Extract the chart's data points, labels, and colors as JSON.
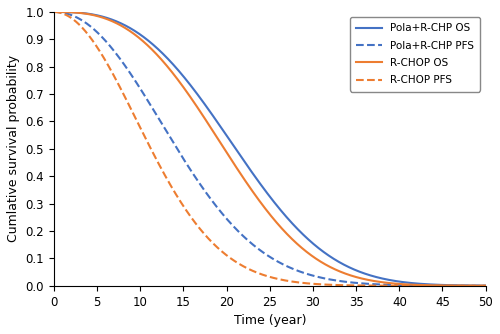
{
  "title": "",
  "xlabel": "Time (year)",
  "ylabel": "Cumlative survival probability",
  "xlim": [
    0,
    50
  ],
  "ylim": [
    0,
    1.0
  ],
  "xticks": [
    0,
    5,
    10,
    15,
    20,
    25,
    30,
    35,
    40,
    45,
    50
  ],
  "yticks": [
    0.0,
    0.1,
    0.2,
    0.3,
    0.4,
    0.5,
    0.6,
    0.7,
    0.8,
    0.9,
    1.0
  ],
  "blue_color": "#4472C4",
  "orange_color": "#ED7D31",
  "legend_labels": [
    "Pola+R-CHP OS",
    "Pola+R-CHP PFS",
    "R-CHOP OS",
    "R-CHOP PFS"
  ],
  "pola_os": {
    "scale": 24.0,
    "shape": 2.8
  },
  "rchop_os": {
    "scale": 22.5,
    "shape": 2.8
  },
  "pola_pfs": {
    "scale": 17.0,
    "shape": 2.1
  },
  "rchop_pfs": {
    "scale": 13.5,
    "shape": 2.0
  },
  "figsize": [
    5.0,
    3.34
  ],
  "dpi": 100
}
